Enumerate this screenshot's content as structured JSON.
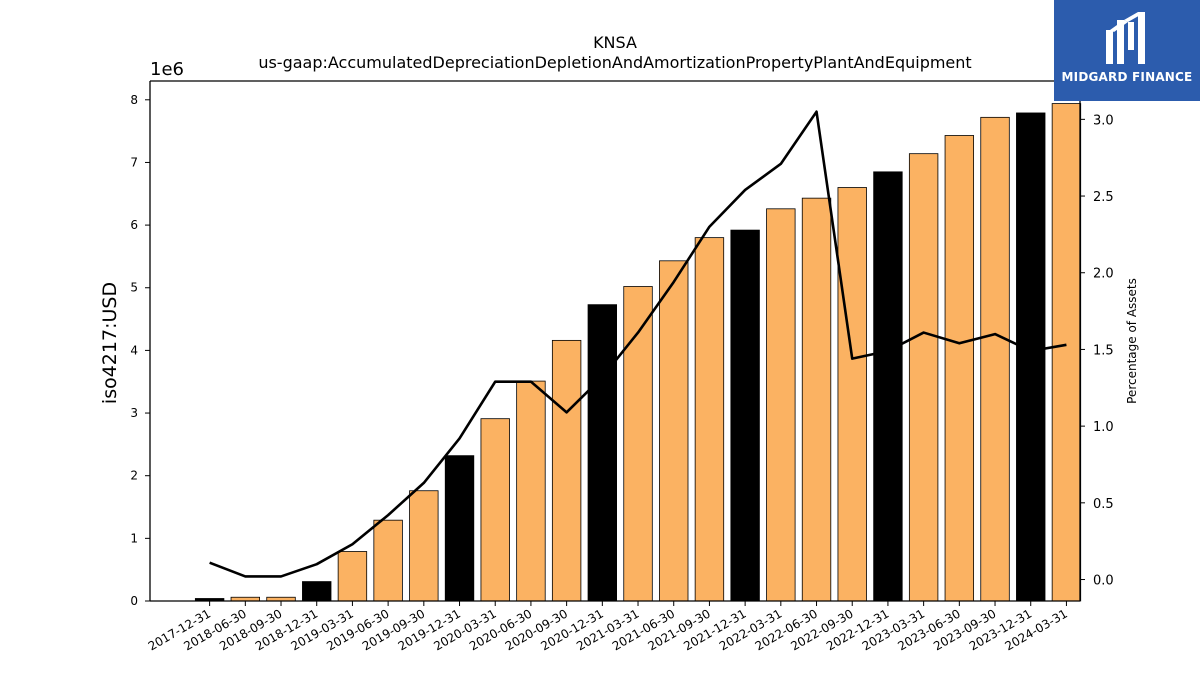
{
  "chart_data": {
    "type": "bar",
    "title": "KNSA",
    "subtitle": "us-gaap:AccumulatedDepreciationDepletionAndAmortizationPropertyPlantAndEquipment",
    "ylabel": "iso4217:USD",
    "y_multiplier": "1e6",
    "ylim": [
      0,
      8.3
    ],
    "yticks": [
      "0",
      "1",
      "2",
      "3",
      "4",
      "5",
      "6",
      "7",
      "8"
    ],
    "y2label": "Percentage of Assets",
    "y2lim": [
      -0.14,
      3.25
    ],
    "y2ticks": [
      "0.0",
      "0.5",
      "1.0",
      "1.5",
      "2.0",
      "2.5",
      "3.0"
    ],
    "categories": [
      "2017-12-31",
      "2018-06-30",
      "2018-09-30",
      "2018-12-31",
      "2019-03-31",
      "2019-06-30",
      "2019-09-30",
      "2019-12-31",
      "2020-03-31",
      "2020-06-30",
      "2020-09-30",
      "2020-12-31",
      "2021-03-31",
      "2021-06-30",
      "2021-09-30",
      "2021-12-31",
      "2022-03-31",
      "2022-06-30",
      "2022-09-30",
      "2022-12-31",
      "2023-03-31",
      "2023-06-30",
      "2023-09-30",
      "2023-12-31",
      "2024-03-31"
    ],
    "series": [
      {
        "values": [
          0.04,
          0.06,
          0.06,
          0.31,
          0.79,
          1.29,
          1.76,
          2.32,
          2.91,
          3.51,
          4.16,
          4.73,
          5.02,
          5.43,
          5.8,
          5.92,
          6.26,
          6.43,
          6.6,
          6.85,
          7.14,
          7.43,
          7.72,
          7.79,
          7.94
        ],
        "highlight": [
          true,
          false,
          false,
          true,
          false,
          false,
          false,
          true,
          false,
          false,
          false,
          true,
          false,
          false,
          false,
          true,
          false,
          false,
          false,
          true,
          false,
          false,
          false,
          true,
          false
        ]
      },
      {
        "axis": "right",
        "type": "line",
        "values": [
          0.11,
          0.02,
          0.02,
          0.1,
          0.23,
          0.42,
          0.63,
          0.92,
          1.29,
          1.29,
          1.09,
          1.32,
          1.61,
          1.94,
          2.3,
          2.54,
          2.71,
          3.05,
          1.44,
          1.49,
          1.61,
          1.54,
          1.6,
          1.49,
          1.53
        ]
      }
    ],
    "colors": {
      "bar": "#fbb262",
      "highlight": "#000000",
      "line": "#000000"
    }
  },
  "logo": {
    "text": "MIDGARD FINANCE"
  }
}
